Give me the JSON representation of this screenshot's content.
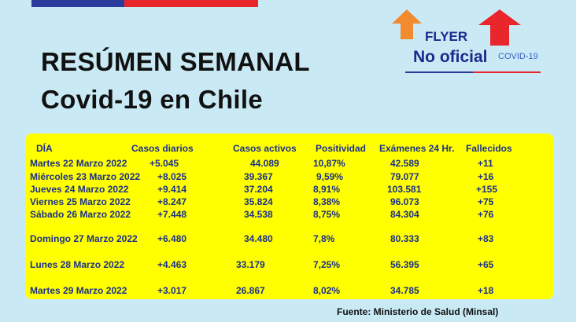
{
  "title": {
    "line1": "RESÚMEN SEMANAL",
    "line2": "Covid-19 en Chile"
  },
  "badge": {
    "flyer": "FLYER",
    "no_oficial": "No oficial",
    "covid": "COVID-19",
    "arrow_left_icon": "arrow-up-icon",
    "arrow_left_color": "#f28a30",
    "arrow_right_icon": "arrow-up-icon",
    "arrow_right_color": "#e8262b"
  },
  "colors": {
    "flag_blue": "#2b3b9c",
    "flag_red": "#e8262b",
    "panel": "#ffff00",
    "text": "#1b2f8c",
    "background": "#c9eaf5"
  },
  "table": {
    "headers": [
      "DÍA",
      "Casos diarios",
      "Casos activos",
      "Positividad",
      "Exámenes 24 Hr.",
      "Fallecidos"
    ],
    "rows": [
      [
        "Martes 22 Marzo 2022",
        "+5.045",
        "44.089",
        "10,87%",
        "42.589",
        "+11"
      ],
      [
        "Miércoles 23 Marzo 2022",
        "+8.025",
        "39.367",
        "9,59%",
        "79.077",
        "+16"
      ],
      [
        "Jueves 24 Marzo 2022",
        "+9.414",
        "37.204",
        "8,91%",
        "103.581",
        "+155"
      ],
      [
        "Viernes 25 Marzo 2022",
        "+8.247",
        "35.824",
        "8,38%",
        "96.073",
        "+75"
      ],
      [
        "Sábado  26 Marzo 2022",
        "+7.448",
        "34.538",
        "8,75%",
        "84.304",
        "+76"
      ],
      [
        "Domingo 27 Marzo 2022",
        "+6.480",
        "34.480",
        "7,8%",
        "80.333",
        "+83"
      ],
      [
        "Lunes 28 Marzo 2022",
        "+4.463",
        "33.179",
        "7,25%",
        "56.395",
        "+65"
      ],
      [
        "Martes 29 Marzo 2022",
        "+3.017",
        "26.867",
        "8,02%",
        "34.785",
        "+18"
      ]
    ]
  },
  "source": "Fuente: Ministerio de Salud (Minsal)"
}
